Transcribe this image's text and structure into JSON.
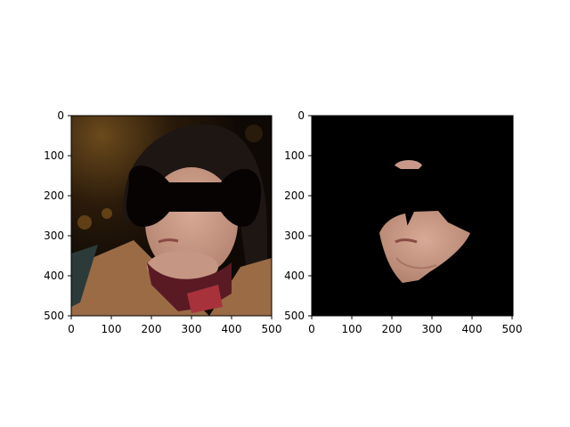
{
  "figure": {
    "background": "#ffffff",
    "axis_color": "#000000",
    "panels": [
      {
        "name": "original-with-mask-overlay",
        "description_visible": "photo of a woman with a black bow-tie shaped occlusion over the eyes",
        "x_ticks": [
          "0",
          "100",
          "200",
          "300",
          "400",
          "500"
        ],
        "y_ticks": [
          "0",
          "100",
          "200",
          "300",
          "400",
          "500"
        ]
      },
      {
        "name": "segmented-face-region",
        "description_visible": "black background showing only the lower face/skin region",
        "x_ticks": [
          "0",
          "100",
          "200",
          "300",
          "400",
          "500"
        ],
        "y_ticks": [
          "0",
          "100",
          "200",
          "300",
          "400",
          "500"
        ]
      }
    ]
  }
}
